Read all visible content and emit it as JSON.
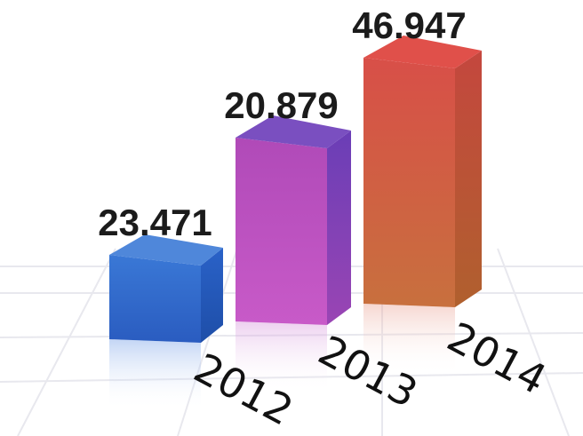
{
  "chart_data": {
    "type": "bar",
    "style": "3d-columns",
    "categories": [
      "2012",
      "2013",
      "2014"
    ],
    "values": [
      23.471,
      20.879,
      46.947
    ],
    "value_labels": [
      "23.471",
      "20.879",
      "46.947"
    ],
    "colors": [
      {
        "top": "#4f87da",
        "front": "#2d63c4",
        "side": "#1f4fa6"
      },
      {
        "top": "#7a4fc0",
        "front": "#b24fbf",
        "side": "#5e3aa6"
      },
      {
        "top": "#e0504a",
        "front": "#d4584a",
        "side": "#b9542f"
      }
    ],
    "grid": true
  }
}
